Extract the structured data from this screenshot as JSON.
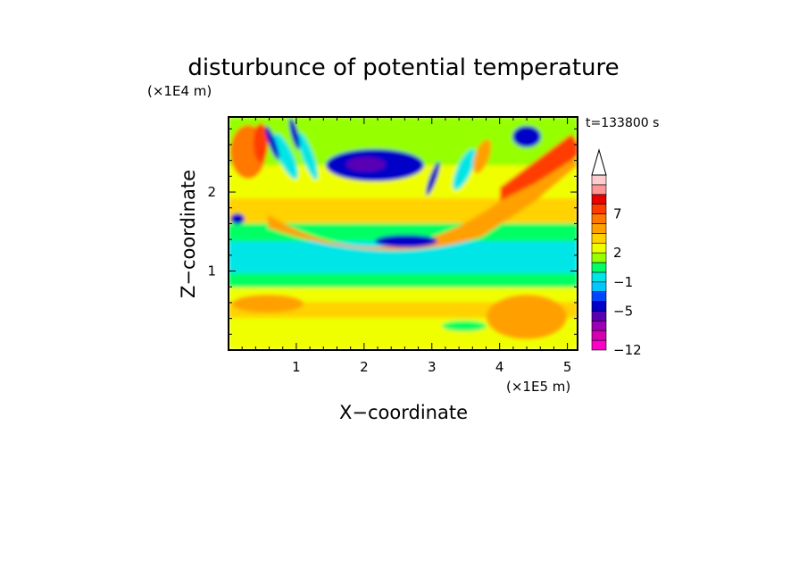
{
  "chart_data": {
    "type": "heatmap",
    "title": "disturbunce of potential temperature",
    "xlabel": "X−coordinate",
    "ylabel": "Z−coordinate",
    "x_unit": "(×1E5 m)",
    "y_unit": "(×1E4 m)",
    "time_label": "t=133800 s",
    "xlim": [
      0,
      5.15
    ],
    "ylim": [
      0,
      2.95
    ],
    "x_ticks": [
      1,
      2,
      3,
      4,
      5
    ],
    "y_ticks": [
      1,
      2
    ],
    "colorbar": {
      "levels": [
        -12,
        -10,
        -8,
        -6,
        -5,
        -3,
        -2,
        -1,
        0,
        1,
        2,
        3,
        4,
        5,
        7,
        8,
        9,
        10
      ],
      "labeled_ticks": [
        "−12",
        "−5",
        "−1",
        "2",
        "7"
      ],
      "colors": [
        "#ff00c8",
        "#d400b4",
        "#9b00b4",
        "#5a00b4",
        "#0000c8",
        "#0046ff",
        "#00c8ff",
        "#00e6e6",
        "#00ff64",
        "#96ff00",
        "#f0ff00",
        "#ffd200",
        "#ffa000",
        "#ff7800",
        "#ff3c00",
        "#e60000",
        "#ff9696",
        "#ffcdcd"
      ],
      "extend": "max"
    },
    "grid": false,
    "legend": "right (colorbar)"
  }
}
